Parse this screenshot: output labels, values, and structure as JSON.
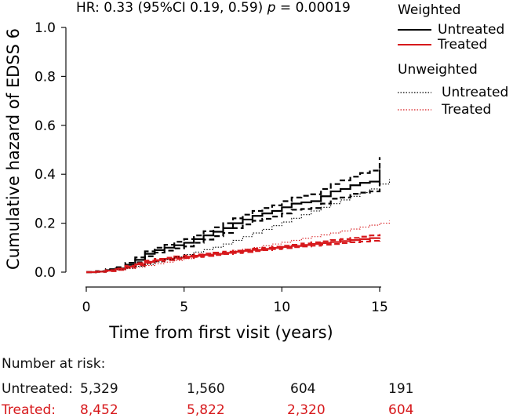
{
  "chart_data": {
    "type": "line",
    "annotation": {
      "hr_prefix": "HR: 0.33 (95%CI 0.19, 0.59) ",
      "p_symbol": "p",
      "p_suffix": " = 0.00019"
    },
    "xlabel": "Time from first visit (years)",
    "ylabel": "Cumulative hazard of EDSS 6",
    "xlim": [
      0,
      15.5
    ],
    "ylim": [
      0,
      1.0
    ],
    "x_ticks": [
      0,
      5,
      10,
      15
    ],
    "x_tick_labels": [
      "0",
      "5",
      "10",
      "15"
    ],
    "y_ticks": [
      0.0,
      0.2,
      0.4,
      0.6,
      0.8,
      1.0
    ],
    "y_tick_labels": [
      "0.0",
      "0.2",
      "0.4",
      "0.6",
      "0.8",
      "1.0"
    ],
    "grid": false,
    "legend": {
      "placement": "top-right, outside plot",
      "group1_title": "Weighted",
      "group2_title": "Unweighted",
      "untreated_label": "Untreated",
      "treated_label": "Treated"
    },
    "colors": {
      "untreated": "#000000",
      "treated": "#d7191c"
    },
    "series": [
      {
        "name": "Untreated",
        "group": "Weighted",
        "style": "solid",
        "color": "#000000",
        "x": [
          0,
          0.5,
          1,
          1.5,
          2,
          2.5,
          3,
          3.5,
          4,
          4.5,
          5,
          5.5,
          6,
          6.5,
          7,
          7.5,
          8,
          8.5,
          9,
          9.5,
          10,
          10.5,
          11,
          11.5,
          12,
          12.5,
          13,
          13.5,
          14,
          14.5,
          15
        ],
        "values": [
          0,
          0.002,
          0.008,
          0.015,
          0.03,
          0.05,
          0.075,
          0.09,
          0.1,
          0.11,
          0.12,
          0.135,
          0.15,
          0.165,
          0.18,
          0.2,
          0.215,
          0.23,
          0.24,
          0.25,
          0.265,
          0.28,
          0.285,
          0.29,
          0.31,
          0.33,
          0.34,
          0.355,
          0.365,
          0.37,
          0.42
        ]
      },
      {
        "name": "Untreated upper 95% CI",
        "group": "Weighted",
        "style": "dashed",
        "color": "#000000",
        "x": [
          0,
          0.5,
          1,
          1.5,
          2,
          2.5,
          3,
          3.5,
          4,
          4.5,
          5,
          5.5,
          6,
          6.5,
          7,
          7.5,
          8,
          8.5,
          9,
          9.5,
          10,
          10.5,
          11,
          11.5,
          12,
          12.5,
          13,
          13.5,
          14,
          14.5,
          15
        ],
        "values": [
          0,
          0.004,
          0.012,
          0.02,
          0.038,
          0.06,
          0.085,
          0.1,
          0.112,
          0.124,
          0.135,
          0.15,
          0.167,
          0.183,
          0.2,
          0.22,
          0.235,
          0.25,
          0.262,
          0.273,
          0.29,
          0.305,
          0.312,
          0.318,
          0.34,
          0.36,
          0.375,
          0.39,
          0.405,
          0.415,
          0.47
        ]
      },
      {
        "name": "Untreated lower 95% CI",
        "group": "Weighted",
        "style": "dashed",
        "color": "#000000",
        "x": [
          0,
          0.5,
          1,
          1.5,
          2,
          2.5,
          3,
          3.5,
          4,
          4.5,
          5,
          5.5,
          6,
          6.5,
          7,
          7.5,
          8,
          8.5,
          9,
          9.5,
          10,
          10.5,
          11,
          11.5,
          12,
          12.5,
          13,
          13.5,
          14,
          14.5,
          15
        ],
        "values": [
          0,
          0.001,
          0.005,
          0.01,
          0.022,
          0.04,
          0.065,
          0.08,
          0.088,
          0.097,
          0.105,
          0.12,
          0.133,
          0.147,
          0.16,
          0.18,
          0.195,
          0.21,
          0.218,
          0.227,
          0.24,
          0.255,
          0.258,
          0.262,
          0.28,
          0.3,
          0.305,
          0.32,
          0.325,
          0.33,
          0.37
        ]
      },
      {
        "name": "Treated",
        "group": "Weighted",
        "style": "solid",
        "color": "#d7191c",
        "x": [
          0,
          0.5,
          1,
          1.5,
          2,
          2.5,
          3,
          3.5,
          4,
          4.5,
          5,
          5.5,
          6,
          6.5,
          7,
          7.5,
          8,
          8.5,
          9,
          9.5,
          10,
          10.5,
          11,
          11.5,
          12,
          12.5,
          13,
          13.5,
          14,
          14.5,
          15
        ],
        "values": [
          0,
          0.002,
          0.006,
          0.012,
          0.022,
          0.032,
          0.042,
          0.049,
          0.054,
          0.059,
          0.063,
          0.067,
          0.071,
          0.075,
          0.079,
          0.083,
          0.087,
          0.091,
          0.095,
          0.099,
          0.103,
          0.107,
          0.111,
          0.115,
          0.119,
          0.123,
          0.127,
          0.131,
          0.135,
          0.139,
          0.142
        ]
      },
      {
        "name": "Treated upper 95% CI",
        "group": "Weighted",
        "style": "dashed",
        "color": "#d7191c",
        "x": [
          0,
          0.5,
          1,
          1.5,
          2,
          2.5,
          3,
          3.5,
          4,
          4.5,
          5,
          5.5,
          6,
          6.5,
          7,
          7.5,
          8,
          8.5,
          9,
          9.5,
          10,
          10.5,
          11,
          11.5,
          12,
          12.5,
          13,
          13.5,
          14,
          14.5,
          15
        ],
        "values": [
          0,
          0.003,
          0.008,
          0.015,
          0.026,
          0.037,
          0.047,
          0.054,
          0.059,
          0.064,
          0.068,
          0.072,
          0.076,
          0.08,
          0.084,
          0.088,
          0.092,
          0.096,
          0.1,
          0.104,
          0.108,
          0.112,
          0.117,
          0.122,
          0.126,
          0.131,
          0.135,
          0.14,
          0.145,
          0.15,
          0.155
        ]
      },
      {
        "name": "Treated lower 95% CI",
        "group": "Weighted",
        "style": "dashed",
        "color": "#d7191c",
        "x": [
          0,
          0.5,
          1,
          1.5,
          2,
          2.5,
          3,
          3.5,
          4,
          4.5,
          5,
          5.5,
          6,
          6.5,
          7,
          7.5,
          8,
          8.5,
          9,
          9.5,
          10,
          10.5,
          11,
          11.5,
          12,
          12.5,
          13,
          13.5,
          14,
          14.5,
          15
        ],
        "values": [
          0,
          0.001,
          0.004,
          0.009,
          0.018,
          0.027,
          0.037,
          0.044,
          0.049,
          0.054,
          0.058,
          0.062,
          0.066,
          0.07,
          0.074,
          0.078,
          0.082,
          0.086,
          0.09,
          0.094,
          0.098,
          0.102,
          0.105,
          0.108,
          0.112,
          0.115,
          0.119,
          0.122,
          0.125,
          0.128,
          0.13
        ]
      },
      {
        "name": "Untreated",
        "group": "Unweighted",
        "style": "dotted",
        "color": "#000000",
        "x": [
          0,
          0.5,
          1,
          1.5,
          2,
          2.5,
          3,
          3.5,
          4,
          4.5,
          5,
          5.5,
          6,
          6.5,
          7,
          7.5,
          8,
          8.5,
          9,
          9.5,
          10,
          10.5,
          11,
          11.5,
          12,
          12.5,
          13,
          13.5,
          14,
          14.5,
          15,
          15.5
        ],
        "values": [
          0,
          0.002,
          0.005,
          0.01,
          0.016,
          0.024,
          0.032,
          0.042,
          0.052,
          0.062,
          0.072,
          0.082,
          0.092,
          0.102,
          0.115,
          0.13,
          0.145,
          0.16,
          0.175,
          0.19,
          0.205,
          0.22,
          0.235,
          0.25,
          0.265,
          0.28,
          0.295,
          0.31,
          0.325,
          0.34,
          0.36,
          0.38
        ]
      },
      {
        "name": "Treated",
        "group": "Unweighted",
        "style": "dotted",
        "color": "#d7191c",
        "x": [
          0,
          0.5,
          1,
          1.5,
          2,
          2.5,
          3,
          3.5,
          4,
          4.5,
          5,
          5.5,
          6,
          6.5,
          7,
          7.5,
          8,
          8.5,
          9,
          9.5,
          10,
          10.5,
          11,
          11.5,
          12,
          12.5,
          13,
          13.5,
          14,
          14.5,
          15,
          15.5
        ],
        "values": [
          0,
          0.002,
          0.005,
          0.009,
          0.014,
          0.02,
          0.027,
          0.034,
          0.041,
          0.048,
          0.055,
          0.062,
          0.068,
          0.074,
          0.08,
          0.087,
          0.094,
          0.101,
          0.108,
          0.115,
          0.122,
          0.13,
          0.138,
          0.145,
          0.152,
          0.16,
          0.168,
          0.176,
          0.184,
          0.192,
          0.2,
          0.21
        ]
      }
    ]
  },
  "risk_table": {
    "title": "Number at risk:",
    "rows": [
      {
        "label": "Untreated:",
        "color": "#000000",
        "values": [
          "5,329",
          "1,560",
          "604",
          "191"
        ]
      },
      {
        "label": "Treated:",
        "color": "#d7191c",
        "values": [
          "8,452",
          "5,822",
          "2,320",
          "604"
        ]
      }
    ]
  }
}
